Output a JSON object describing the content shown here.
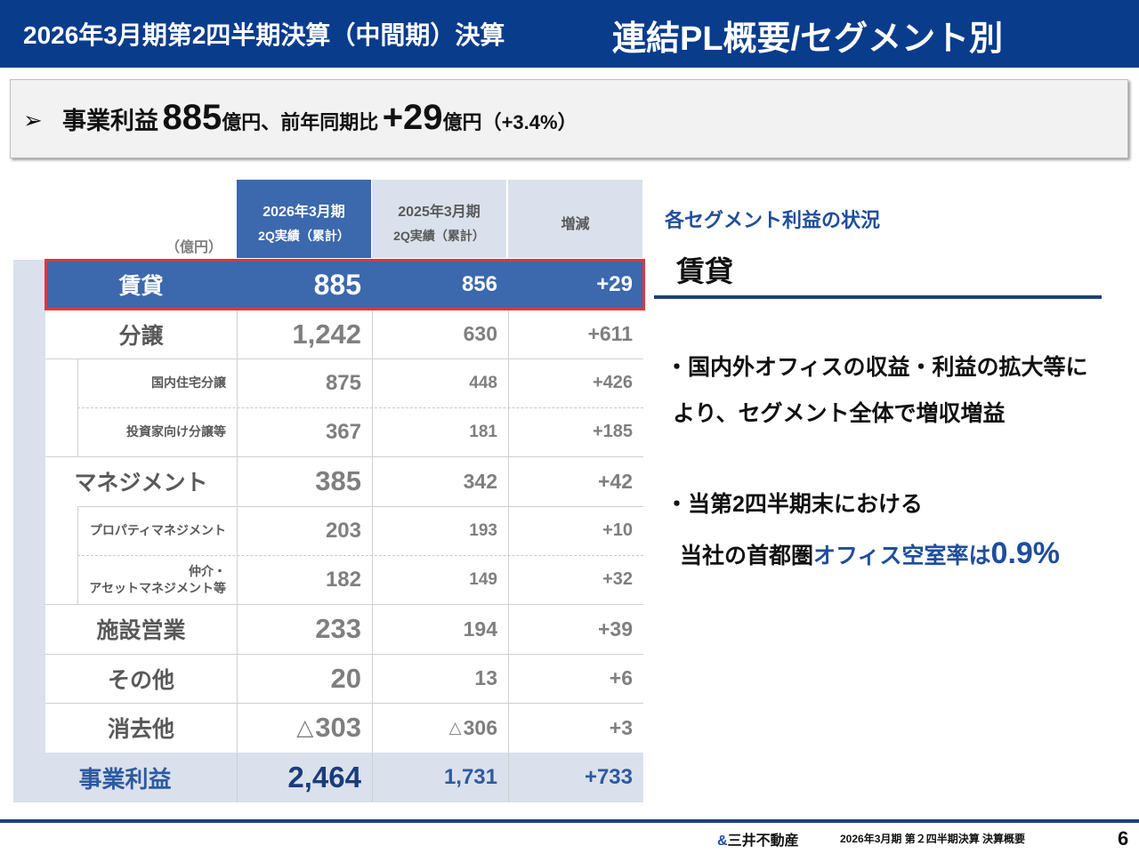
{
  "header": {
    "title_left": "2026年3月期第2四半期決算（中間期）決算",
    "title_right": "連結PL概要/セグメント別"
  },
  "summary": {
    "arrow": "➢",
    "label": "事業利益",
    "value": "885",
    "unit1": "億円、",
    "compare": "前年同期比",
    "delta": "+29",
    "unit2": "億円",
    "pct_open": "（",
    "pct": "+3.4%",
    "pct_close": "）"
  },
  "table": {
    "unit": "（億円）",
    "columns": [
      {
        "line1": "2026年3月期",
        "line2": "2Q実績（累計）"
      },
      {
        "line1": "2025年3月期",
        "line2": "2Q実績（累計）"
      },
      {
        "line1": "増減",
        "line2": ""
      }
    ],
    "rows": [
      {
        "label": "賃貸",
        "c1": "885",
        "c2": "856",
        "c3": "+29"
      },
      {
        "label": "分譲",
        "c1": "1,242",
        "c2": "630",
        "c3": "+611"
      },
      {
        "label": "国内住宅分譲",
        "c1": "875",
        "c2": "448",
        "c3": "+426"
      },
      {
        "label": "投資家向け分譲等",
        "c1": "367",
        "c2": "181",
        "c3": "+185"
      },
      {
        "label": "マネジメント",
        "c1": "385",
        "c2": "342",
        "c3": "+42"
      },
      {
        "label": "プロパティマネジメント",
        "c1": "203",
        "c2": "193",
        "c3": "+10"
      },
      {
        "label1": "仲介・",
        "label2": "アセットマネジメント等",
        "c1": "182",
        "c2": "149",
        "c3": "+32"
      },
      {
        "label": "施設営業",
        "c1": "233",
        "c2": "194",
        "c3": "+39"
      },
      {
        "label": "その他",
        "c1": "20",
        "c2": "13",
        "c3": "+6"
      },
      {
        "label": "消去他",
        "c1_tri": "△",
        "c1": "303",
        "c2_tri": "△",
        "c2": "306",
        "c3": "+3"
      },
      {
        "label": "事業利益",
        "c1": "2,464",
        "c2": "1,731",
        "c3": "+733"
      }
    ]
  },
  "segment": {
    "title": "各セグメント利益の状況",
    "name": "賃貸",
    "bullet1_line1": "・国内外オフィスの収益・利益の拡大等に",
    "bullet1_line2": "より、セグメント全体で増収増益",
    "bullet2_line1": "・当第2四半期末における",
    "bullet2_line2_a": "当社の首都圏",
    "bullet2_line2_b": "オフィス空室率は",
    "bullet2_line2_c": "0.9%"
  },
  "footer": {
    "logo_mark": "&",
    "company": "三井不動産",
    "text": "2026年3月期 第２四半期決算 決算概要",
    "page": "6"
  },
  "colors": {
    "header_bg": "#0a3c8c",
    "highlight_row": "#3c68ad",
    "highlight_border": "#d9383f",
    "accent_blue": "#1f4e9a"
  }
}
